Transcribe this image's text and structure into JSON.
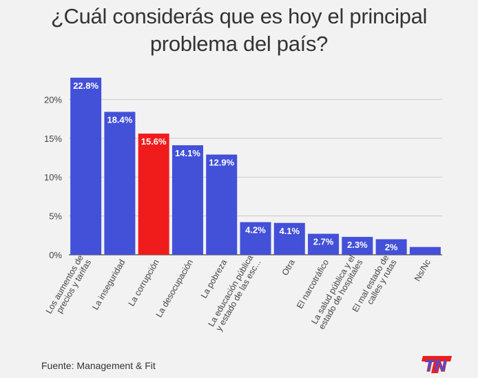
{
  "title_lines": [
    "¿Cuál considerás que es hoy el principal",
    "problema del país?"
  ],
  "source": "Fuente: Management & Fit",
  "logo_text": "TN",
  "colors": {
    "bar": "#4350d8",
    "highlight": "#f01c1c",
    "background": "#f2f2f2",
    "text": "#333333"
  },
  "chart_data": {
    "type": "bar",
    "title": "¿Cuál considerás que es hoy el principal problema del país?",
    "xlabel": "",
    "ylabel": "",
    "ylim": [
      0,
      25
    ],
    "yticks": [
      "0%",
      "5%",
      "10%",
      "15%",
      "20%"
    ],
    "grid": true,
    "categories": [
      [
        "Los aumentos de",
        "precios y tarifas"
      ],
      [
        "La inseguridad"
      ],
      [
        "La corrupción"
      ],
      [
        "La desocupación"
      ],
      [
        "La pobreza"
      ],
      [
        "La educación pública",
        "y estado de las esc..."
      ],
      [
        "Otra"
      ],
      [
        "El narcotráfico"
      ],
      [
        "La salud pública y el",
        "estado de hospitales"
      ],
      [
        "El mal estado de",
        "calles y rutas"
      ],
      [
        "Ns/Nc"
      ]
    ],
    "values": [
      22.8,
      18.4,
      15.6,
      14.1,
      12.9,
      4.2,
      4.1,
      2.7,
      2.3,
      2,
      1
    ],
    "labels": [
      "22.8%",
      "18.4%",
      "15.6%",
      "14.1%",
      "12.9%",
      "4.2%",
      "4.1%",
      "2.7%",
      "2.3%",
      "2%",
      ""
    ],
    "highlight_index": 2
  }
}
